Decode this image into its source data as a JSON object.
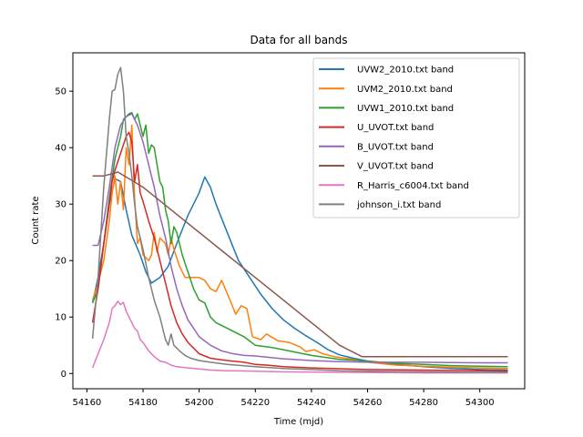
{
  "chart_data": {
    "type": "line",
    "title": "Data for all bands",
    "xlabel": "Time (mjd)",
    "ylabel": "Count rate",
    "xlim": [
      54155,
      54316
    ],
    "ylim": [
      -2.7,
      56.8
    ],
    "x_ticks": [
      54160,
      54180,
      54200,
      54220,
      54240,
      54260,
      54280,
      54300
    ],
    "y_ticks": [
      0,
      10,
      20,
      30,
      40,
      50
    ],
    "grid": false,
    "legend_position": "top-right",
    "series": [
      {
        "name": "UVW2_2010.txt band",
        "color": "#1f77b4",
        "points": [
          [
            54162,
            12.5
          ],
          [
            54164,
            17
          ],
          [
            54166,
            23
          ],
          [
            54168,
            30
          ],
          [
            54170,
            34.5
          ],
          [
            54172,
            34
          ],
          [
            54174,
            29
          ],
          [
            54176,
            24.5
          ],
          [
            54179,
            21
          ],
          [
            54181,
            18
          ],
          [
            54183,
            16
          ],
          [
            54186,
            17
          ],
          [
            54189,
            19
          ],
          [
            54192,
            23
          ],
          [
            54196,
            28
          ],
          [
            54200,
            32
          ],
          [
            54202,
            34.8
          ],
          [
            54204,
            33
          ],
          [
            54206,
            30
          ],
          [
            54210,
            25
          ],
          [
            54214,
            20
          ],
          [
            54218,
            17
          ],
          [
            54222,
            14
          ],
          [
            54226,
            11.5
          ],
          [
            54230,
            9.5
          ],
          [
            54234,
            8
          ],
          [
            54238,
            6.7
          ],
          [
            54242,
            5.5
          ],
          [
            54246,
            4.2
          ],
          [
            54250,
            3.3
          ],
          [
            54255,
            2.7
          ],
          [
            54260,
            2.2
          ],
          [
            54270,
            1.6
          ],
          [
            54280,
            1.2
          ],
          [
            54290,
            0.9
          ],
          [
            54300,
            0.7
          ],
          [
            54310,
            0.6
          ]
        ]
      },
      {
        "name": "UVM2_2010.txt band",
        "color": "#ff7f0e",
        "points": [
          [
            54162,
            13
          ],
          [
            54164,
            16
          ],
          [
            54166,
            20
          ],
          [
            54168,
            27
          ],
          [
            54169,
            32
          ],
          [
            54170,
            35
          ],
          [
            54171,
            30
          ],
          [
            54172,
            34
          ],
          [
            54173,
            29
          ],
          [
            54174,
            40
          ],
          [
            54175,
            37
          ],
          [
            54176,
            44
          ],
          [
            54177,
            31
          ],
          [
            54178,
            23
          ],
          [
            54179,
            24
          ],
          [
            54180,
            21
          ],
          [
            54182,
            20
          ],
          [
            54183,
            21
          ],
          [
            54184,
            25
          ],
          [
            54185,
            21.5
          ],
          [
            54186,
            24
          ],
          [
            54188,
            23
          ],
          [
            54189,
            21
          ],
          [
            54190,
            24
          ],
          [
            54191,
            22
          ],
          [
            54193,
            19
          ],
          [
            54195,
            17
          ],
          [
            54198,
            17
          ],
          [
            54200,
            17
          ],
          [
            54202,
            16.5
          ],
          [
            54204,
            15
          ],
          [
            54206,
            14.5
          ],
          [
            54208,
            16.5
          ],
          [
            54211,
            13
          ],
          [
            54213,
            10.5
          ],
          [
            54215,
            12
          ],
          [
            54217,
            11.5
          ],
          [
            54219,
            6.5
          ],
          [
            54222,
            6
          ],
          [
            54224,
            7
          ],
          [
            54228,
            5.8
          ],
          [
            54232,
            5.5
          ],
          [
            54236,
            4.7
          ],
          [
            54238,
            3.9
          ],
          [
            54241,
            4.2
          ],
          [
            54244,
            3.5
          ],
          [
            54248,
            3
          ],
          [
            54255,
            2.5
          ],
          [
            54260,
            2
          ],
          [
            54270,
            1.5
          ],
          [
            54280,
            1.3
          ],
          [
            54290,
            1.1
          ],
          [
            54300,
            1
          ],
          [
            54310,
            0.9
          ]
        ]
      },
      {
        "name": "UVW1_2010.txt band",
        "color": "#2ca02c",
        "points": [
          [
            54162,
            12.5
          ],
          [
            54164,
            15
          ],
          [
            54166,
            23
          ],
          [
            54168,
            31
          ],
          [
            54170,
            38
          ],
          [
            54172,
            42
          ],
          [
            54173,
            45
          ],
          [
            54175,
            46
          ],
          [
            54176,
            46.2
          ],
          [
            54177,
            45
          ],
          [
            54178,
            46
          ],
          [
            54179,
            44
          ],
          [
            54180,
            42
          ],
          [
            54181,
            44
          ],
          [
            54182,
            39
          ],
          [
            54183,
            40.5
          ],
          [
            54184,
            40
          ],
          [
            54185,
            37
          ],
          [
            54186,
            34
          ],
          [
            54187,
            33
          ],
          [
            54188,
            29
          ],
          [
            54189,
            27
          ],
          [
            54190,
            23
          ],
          [
            54191,
            26
          ],
          [
            54192,
            25
          ],
          [
            54194,
            21
          ],
          [
            54196,
            18
          ],
          [
            54198,
            15
          ],
          [
            54200,
            13
          ],
          [
            54202,
            12.5
          ],
          [
            54204,
            10
          ],
          [
            54206,
            9
          ],
          [
            54210,
            8
          ],
          [
            54214,
            7
          ],
          [
            54216,
            6.5
          ],
          [
            54220,
            5
          ],
          [
            54226,
            4.6
          ],
          [
            54232,
            4
          ],
          [
            54240,
            3.2
          ],
          [
            54250,
            2.5
          ],
          [
            54260,
            2.2
          ],
          [
            54270,
            1.8
          ],
          [
            54280,
            1.6
          ],
          [
            54290,
            1.4
          ],
          [
            54300,
            1.3
          ],
          [
            54310,
            1.2
          ]
        ]
      },
      {
        "name": "U_UVOT.txt band",
        "color": "#d62728",
        "points": [
          [
            54162,
            9
          ],
          [
            54164,
            15
          ],
          [
            54166,
            23
          ],
          [
            54168,
            30
          ],
          [
            54169,
            34
          ],
          [
            54170,
            36
          ],
          [
            54172,
            39
          ],
          [
            54174,
            42
          ],
          [
            54175,
            42.7
          ],
          [
            54176,
            41
          ],
          [
            54177,
            34
          ],
          [
            54178,
            37
          ],
          [
            54179,
            32
          ],
          [
            54180,
            30.5
          ],
          [
            54182,
            27
          ],
          [
            54184,
            24
          ],
          [
            54186,
            20
          ],
          [
            54188,
            16
          ],
          [
            54190,
            12
          ],
          [
            54192,
            9
          ],
          [
            54194,
            7
          ],
          [
            54196,
            5.5
          ],
          [
            54198,
            4.5
          ],
          [
            54200,
            3.5
          ],
          [
            54204,
            2.7
          ],
          [
            54210,
            2.3
          ],
          [
            54216,
            2
          ],
          [
            54220,
            1.6
          ],
          [
            54224,
            1.5
          ],
          [
            54230,
            1.2
          ],
          [
            54240,
            1
          ],
          [
            54260,
            0.7
          ],
          [
            54280,
            0.6
          ],
          [
            54300,
            0.5
          ],
          [
            54310,
            0.4
          ]
        ]
      },
      {
        "name": "B_UVOT.txt band",
        "color": "#9467bd",
        "points": [
          [
            54162,
            22.7
          ],
          [
            54164,
            22.7
          ],
          [
            54166,
            27
          ],
          [
            54168,
            33
          ],
          [
            54170,
            40
          ],
          [
            54172,
            44
          ],
          [
            54174,
            45.5
          ],
          [
            54176,
            46
          ],
          [
            54178,
            44
          ],
          [
            54180,
            41
          ],
          [
            54182,
            37
          ],
          [
            54184,
            33
          ],
          [
            54186,
            28
          ],
          [
            54188,
            24
          ],
          [
            54190,
            19
          ],
          [
            54192,
            15
          ],
          [
            54194,
            12
          ],
          [
            54196,
            9.5
          ],
          [
            54198,
            8
          ],
          [
            54200,
            6.5
          ],
          [
            54204,
            5
          ],
          [
            54208,
            4
          ],
          [
            54212,
            3.5
          ],
          [
            54216,
            3.2
          ],
          [
            54220,
            3.1
          ],
          [
            54230,
            2.6
          ],
          [
            54240,
            2.3
          ],
          [
            54250,
            2.1
          ],
          [
            54260,
            2
          ],
          [
            54280,
            2
          ],
          [
            54300,
            1.9
          ],
          [
            54310,
            1.9
          ]
        ]
      },
      {
        "name": "V_UVOT.txt band",
        "color": "#8c564b",
        "points": [
          [
            54162,
            35
          ],
          [
            54166,
            35
          ],
          [
            54170,
            35.5
          ],
          [
            54171,
            35.7
          ],
          [
            54180,
            33
          ],
          [
            54190,
            29
          ],
          [
            54200,
            25
          ],
          [
            54210,
            21
          ],
          [
            54220,
            17
          ],
          [
            54230,
            13
          ],
          [
            54240,
            9
          ],
          [
            54250,
            5
          ],
          [
            54258,
            3
          ],
          [
            54280,
            3
          ],
          [
            54310,
            3
          ]
        ]
      },
      {
        "name": "R_Harris_c6004.txt band",
        "color": "#e377c2",
        "points": [
          [
            54162,
            1
          ],
          [
            54164,
            3.5
          ],
          [
            54166,
            6
          ],
          [
            54168,
            9
          ],
          [
            54169,
            11.5
          ],
          [
            54170,
            12
          ],
          [
            54171,
            12.8
          ],
          [
            54172,
            12.2
          ],
          [
            54173,
            12.6
          ],
          [
            54174,
            11
          ],
          [
            54175,
            10
          ],
          [
            54176,
            9
          ],
          [
            54177,
            8
          ],
          [
            54178,
            7.5
          ],
          [
            54179,
            6
          ],
          [
            54180,
            5.5
          ],
          [
            54182,
            4
          ],
          [
            54184,
            3
          ],
          [
            54186,
            2.2
          ],
          [
            54188,
            2
          ],
          [
            54190,
            1.5
          ],
          [
            54192,
            1.2
          ],
          [
            54196,
            1
          ],
          [
            54200,
            0.8
          ],
          [
            54204,
            0.6
          ],
          [
            54210,
            0.5
          ],
          [
            54220,
            0.4
          ],
          [
            54230,
            0.3
          ],
          [
            54250,
            0.2
          ],
          [
            54280,
            0.1
          ],
          [
            54310,
            0.1
          ]
        ]
      },
      {
        "name": "johnson_i.txt band",
        "color": "#7f7f7f",
        "points": [
          [
            54162,
            6.2
          ],
          [
            54164,
            17
          ],
          [
            54166,
            33
          ],
          [
            54168,
            45
          ],
          [
            54169,
            50
          ],
          [
            54170,
            50.3
          ],
          [
            54171,
            53
          ],
          [
            54172,
            54.2
          ],
          [
            54173,
            50
          ],
          [
            54174,
            42
          ],
          [
            54175,
            39
          ],
          [
            54176,
            35
          ],
          [
            54177,
            30
          ],
          [
            54178,
            26
          ],
          [
            54180,
            22
          ],
          [
            54182,
            17
          ],
          [
            54184,
            13
          ],
          [
            54186,
            10
          ],
          [
            54188,
            6
          ],
          [
            54189,
            5
          ],
          [
            54190,
            7
          ],
          [
            54191,
            5
          ],
          [
            54193,
            4
          ],
          [
            54195,
            3.2
          ],
          [
            54197,
            2.7
          ],
          [
            54200,
            2.3
          ],
          [
            54204,
            2
          ],
          [
            54210,
            1.6
          ],
          [
            54220,
            1.2
          ],
          [
            54230,
            0.9
          ],
          [
            54240,
            0.7
          ],
          [
            54250,
            0.5
          ],
          [
            54260,
            0.4
          ],
          [
            54280,
            0.3
          ],
          [
            54300,
            0.2
          ],
          [
            54310,
            0.2
          ]
        ]
      }
    ]
  }
}
